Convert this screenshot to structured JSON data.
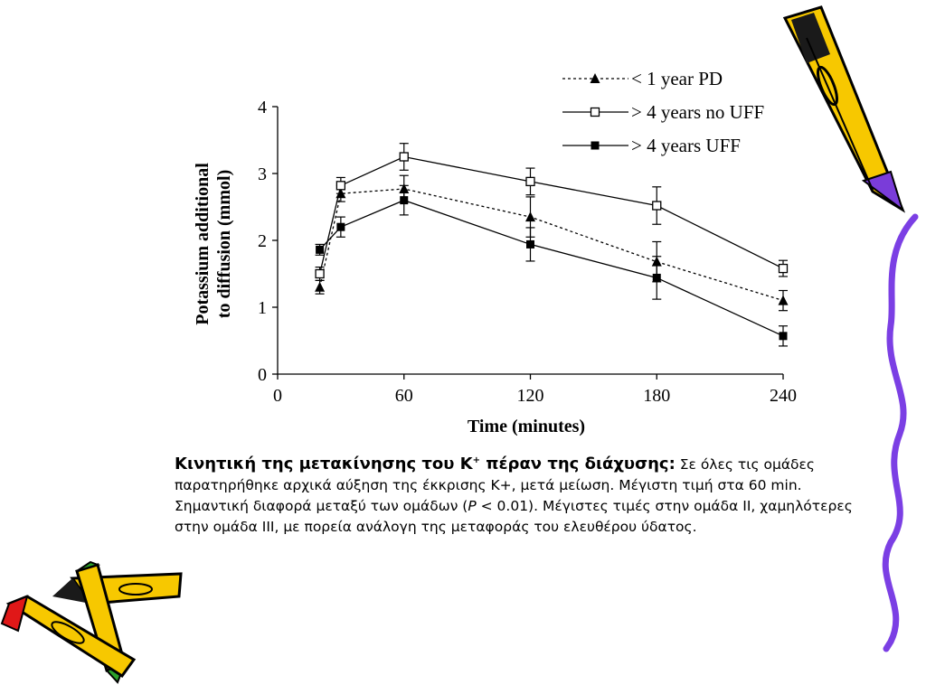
{
  "caption": {
    "heading_a": "Κινητική της μετακίνησης του Κ",
    "heading_sup": "+",
    "heading_b": " πέραν της διάχυσης:",
    "text_a": " Σε όλες τις ομάδες παρατηρήθηκε αρχικά αύξηση της έκκρισης Κ+, μετά μείωση. Μέγιστη τιμή στα 60 min. Σημαντική διαφορά μεταξύ των ομάδων (",
    "text_p": "P",
    "text_b": " < 0.01). Μέγιστες τιμές στην ομάδα ΙΙ, χαμηλότερες στην ομάδα ΙΙΙ, με πορεία ανάλογη της μεταφοράς του ελευθέρου ύδατος."
  },
  "chart_data": {
    "type": "line",
    "title": "",
    "xlabel": "Time (minutes)",
    "ylabel_line1": "Potassium additional",
    "ylabel_line2": "to diffusion (mmol)",
    "xlim": [
      0,
      240
    ],
    "ylim": [
      0,
      4
    ],
    "xticks": [
      0,
      60,
      120,
      180,
      240
    ],
    "yticks": [
      0,
      1,
      2,
      3,
      4
    ],
    "legend_position": "top-right",
    "series": [
      {
        "name": "< 1 year PD",
        "marker": "triangle",
        "style": "dotted",
        "x": [
          20,
          30,
          60,
          120,
          180,
          240
        ],
        "y": [
          1.3,
          2.7,
          2.77,
          2.35,
          1.68,
          1.1
        ],
        "err": [
          0.1,
          0.12,
          0.2,
          0.3,
          0.3,
          0.15
        ]
      },
      {
        "name": "> 4 years no UFF",
        "marker": "open-square",
        "style": "solid",
        "x": [
          20,
          30,
          60,
          120,
          180,
          240
        ],
        "y": [
          1.5,
          2.82,
          3.25,
          2.88,
          2.52,
          1.58
        ],
        "err": [
          0.1,
          0.12,
          0.2,
          0.2,
          0.28,
          0.12
        ]
      },
      {
        "name": "> 4 years UFF",
        "marker": "filled-square",
        "style": "solid",
        "x": [
          20,
          30,
          60,
          120,
          180,
          240
        ],
        "y": [
          1.86,
          2.2,
          2.6,
          1.94,
          1.44,
          0.57
        ],
        "err": [
          0.08,
          0.15,
          0.22,
          0.25,
          0.32,
          0.15
        ]
      }
    ]
  },
  "colors": {
    "pencil_yellow": "#f7c800",
    "pencil_outline": "#000000",
    "pencil_purple": "#7a3cd9",
    "pencil_red": "#e01818",
    "pencil_green": "#2aa12a",
    "squiggle": "#7b3fe4"
  }
}
